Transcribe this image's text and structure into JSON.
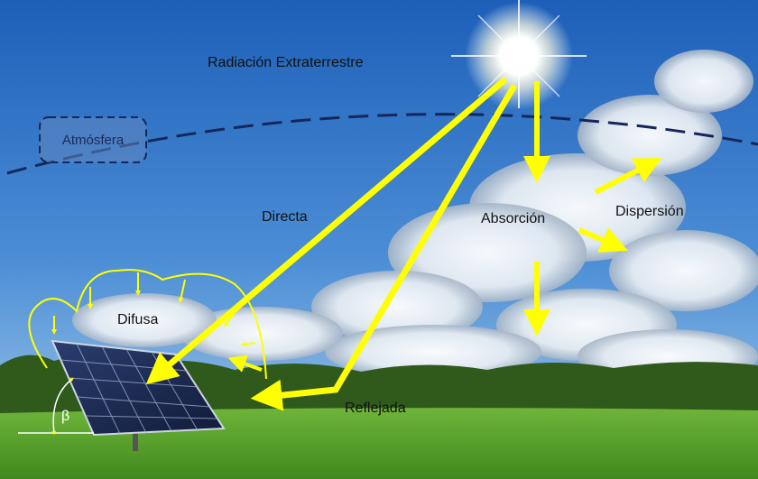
{
  "labels": [
    "Radiación Extraterrestre",
    "Atmósfera",
    "Directa",
    "Absorción",
    "Dispersión",
    "Difusa",
    "Reflejada",
    "β"
  ]
}
